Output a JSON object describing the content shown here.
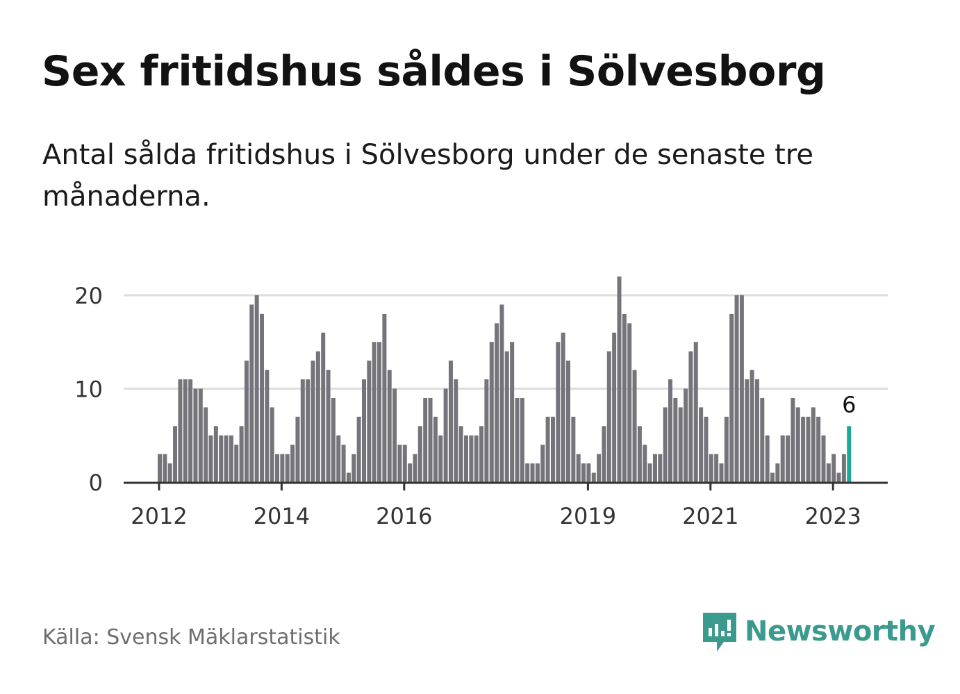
{
  "title": "Sex fritidshus såldes i Sölvesborg",
  "subtitle": "Antal sålda fritidshus i Sölvesborg under de senaste tre månaderna.",
  "source": "Källa: Svensk Mäklarstatistik",
  "brand": {
    "name": "Newsworthy",
    "icon": "newsworthy-logo-icon"
  },
  "colors": {
    "bar": "#75747b",
    "highlight": "#1ba79a",
    "grid": "#dedede",
    "axis": "#333333",
    "brand": "#3b9a8e"
  },
  "chart_data": {
    "type": "bar",
    "x": [
      "2012-01",
      "2012-02",
      "2012-03",
      "2012-04",
      "2012-05",
      "2012-06",
      "2012-07",
      "2012-08",
      "2012-09",
      "2012-10",
      "2012-11",
      "2012-12",
      "2013-01",
      "2013-02",
      "2013-03",
      "2013-04",
      "2013-05",
      "2013-06",
      "2013-07",
      "2013-08",
      "2013-09",
      "2013-10",
      "2013-11",
      "2013-12",
      "2014-01",
      "2014-02",
      "2014-03",
      "2014-04",
      "2014-05",
      "2014-06",
      "2014-07",
      "2014-08",
      "2014-09",
      "2014-10",
      "2014-11",
      "2014-12",
      "2015-01",
      "2015-02",
      "2015-03",
      "2015-04",
      "2015-05",
      "2015-06",
      "2015-07",
      "2015-08",
      "2015-09",
      "2015-10",
      "2015-11",
      "2015-12",
      "2016-01",
      "2016-02",
      "2016-03",
      "2016-04",
      "2016-05",
      "2016-06",
      "2016-07",
      "2016-08",
      "2016-09",
      "2016-10",
      "2016-11",
      "2016-12",
      "2017-01",
      "2017-02",
      "2017-03",
      "2017-04",
      "2017-05",
      "2017-06",
      "2017-07",
      "2017-08",
      "2017-09",
      "2017-10",
      "2017-11",
      "2017-12",
      "2018-01",
      "2018-02",
      "2018-03",
      "2018-04",
      "2018-05",
      "2018-06",
      "2018-07",
      "2018-08",
      "2018-09",
      "2018-10",
      "2018-11",
      "2018-12",
      "2019-01",
      "2019-02",
      "2019-03",
      "2019-04",
      "2019-05",
      "2019-06",
      "2019-07",
      "2019-08",
      "2019-09",
      "2019-10",
      "2019-11",
      "2019-12",
      "2020-01",
      "2020-02",
      "2020-03",
      "2020-04",
      "2020-05",
      "2020-06",
      "2020-07",
      "2020-08",
      "2020-09",
      "2020-10",
      "2020-11",
      "2020-12",
      "2021-01",
      "2021-02",
      "2021-03",
      "2021-04",
      "2021-05",
      "2021-06",
      "2021-07",
      "2021-08",
      "2021-09",
      "2021-10",
      "2021-11",
      "2021-12",
      "2022-01",
      "2022-02",
      "2022-03",
      "2022-04",
      "2022-05",
      "2022-06",
      "2022-07",
      "2022-08",
      "2022-09",
      "2022-10",
      "2022-11",
      "2022-12",
      "2023-01",
      "2023-02",
      "2023-03",
      "2023-04"
    ],
    "values": [
      3,
      3,
      2,
      6,
      11,
      11,
      11,
      10,
      10,
      8,
      5,
      6,
      5,
      5,
      5,
      4,
      6,
      13,
      19,
      20,
      18,
      12,
      8,
      3,
      3,
      3,
      4,
      7,
      11,
      11,
      13,
      14,
      16,
      12,
      9,
      5,
      4,
      1,
      3,
      7,
      11,
      13,
      15,
      15,
      18,
      12,
      10,
      4,
      4,
      2,
      3,
      6,
      9,
      9,
      7,
      5,
      10,
      13,
      11,
      6,
      5,
      5,
      5,
      6,
      11,
      15,
      17,
      19,
      14,
      15,
      9,
      9,
      2,
      2,
      2,
      4,
      7,
      7,
      15,
      16,
      13,
      7,
      3,
      2,
      2,
      1,
      3,
      6,
      14,
      16,
      22,
      18,
      17,
      12,
      6,
      4,
      2,
      3,
      3,
      8,
      11,
      9,
      8,
      10,
      14,
      15,
      8,
      7,
      3,
      3,
      2,
      7,
      18,
      20,
      20,
      11,
      12,
      11,
      9,
      5,
      1,
      2,
      5,
      5,
      9,
      8,
      7,
      7,
      8,
      7,
      5,
      2,
      3,
      1,
      3,
      6
    ],
    "highlight_last": true,
    "value_label": "6",
    "x_ticks": [
      {
        "x": "2012-01",
        "label": "2012"
      },
      {
        "x": "2014-01",
        "label": "2014"
      },
      {
        "x": "2016-01",
        "label": "2016"
      },
      {
        "x": "2019-01",
        "label": "2019"
      },
      {
        "x": "2021-01",
        "label": "2021"
      },
      {
        "x": "2023-01",
        "label": "2023"
      }
    ],
    "y_ticks": [
      0,
      10,
      20
    ],
    "ylim": [
      0,
      20
    ],
    "grid": true,
    "xlabel": "",
    "ylabel": ""
  }
}
